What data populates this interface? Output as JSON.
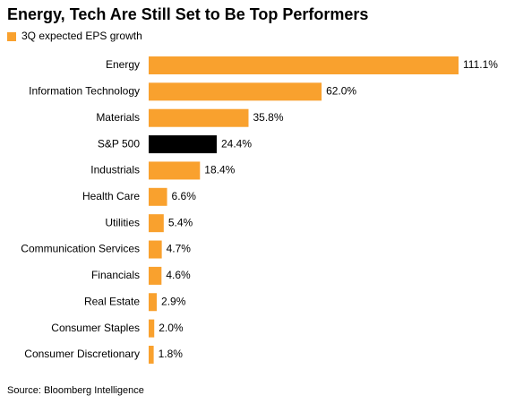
{
  "chart_data": {
    "type": "hbar",
    "title": "Energy, Tech Are Still Set to Be Top Performers",
    "legend": "3Q expected EPS growth",
    "source": "Source: Bloomberg Intelligence",
    "categories": [
      "Energy",
      "Information Technology",
      "Materials",
      "S&P 500",
      "Industrials",
      "Health Care",
      "Utilities",
      "Communication Services",
      "Financials",
      "Real Estate",
      "Consumer Staples",
      "Consumer Discretionary"
    ],
    "values": [
      111.1,
      62.0,
      35.8,
      24.4,
      18.4,
      6.6,
      5.4,
      4.7,
      4.6,
      2.9,
      2.0,
      1.8
    ],
    "value_labels": [
      "111.1%",
      "62.0%",
      "35.8%",
      "24.4%",
      "18.4%",
      "6.6%",
      "5.4%",
      "4.7%",
      "4.6%",
      "2.9%",
      "2.0%",
      "1.8%"
    ],
    "color": "#f9a12e",
    "colors": [
      "#f9a12e",
      "#f9a12e",
      "#f9a12e",
      "#000000",
      "#f9a12e",
      "#f9a12e",
      "#f9a12e",
      "#f9a12e",
      "#f9a12e",
      "#f9a12e",
      "#f9a12e",
      "#f9a12e"
    ]
  }
}
